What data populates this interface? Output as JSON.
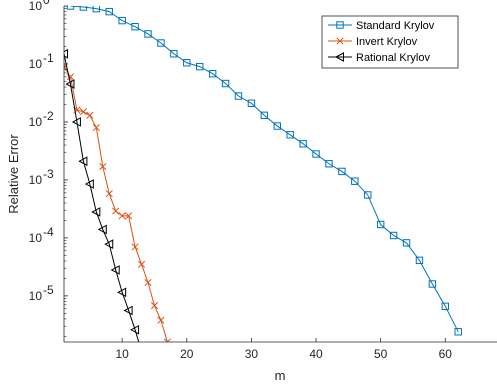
{
  "chart_data": {
    "type": "line",
    "xlabel": "m",
    "ylabel": "Relative Error",
    "xlim": [
      1,
      68
    ],
    "ylim": [
      1.6e-06,
      1.0
    ],
    "yscale": "log",
    "x_ticks": [
      10,
      20,
      30,
      40,
      50,
      60
    ],
    "x_tick_labels": [
      "10",
      "20",
      "30",
      "40",
      "50",
      "60"
    ],
    "y_ticks": [
      {
        "value": 1.0,
        "base": "10",
        "exp": "0"
      },
      {
        "value": 0.1,
        "base": "10",
        "exp": "-1"
      },
      {
        "value": 0.01,
        "base": "10",
        "exp": "-2"
      },
      {
        "value": 0.001,
        "base": "10",
        "exp": "-3"
      },
      {
        "value": 0.0001,
        "base": "10",
        "exp": "-4"
      },
      {
        "value": 1e-05,
        "base": "10",
        "exp": "-5"
      }
    ],
    "grid": false,
    "legend_position": "top-right",
    "series": [
      {
        "name": "Standard Krylov",
        "color": "#0072bd",
        "marker": "square",
        "x": [
          2,
          4,
          6,
          8,
          10,
          12,
          14,
          16,
          18,
          20,
          22,
          24,
          26,
          28,
          30,
          32,
          34,
          36,
          38,
          40,
          42,
          44,
          46,
          48,
          50,
          52,
          54,
          56,
          58,
          60,
          62
        ],
        "y": [
          1.0,
          0.96,
          0.9,
          0.8,
          0.56,
          0.44,
          0.33,
          0.23,
          0.15,
          0.105,
          0.09,
          0.068,
          0.046,
          0.028,
          0.021,
          0.013,
          0.0085,
          0.006,
          0.0042,
          0.0028,
          0.0019,
          0.0014,
          0.00095,
          0.00055,
          0.00017,
          0.00011,
          8.2e-05,
          4.1e-05,
          1.6e-05,
          6.6e-06,
          2.4e-06
        ]
      },
      {
        "name": "Invert Krylov",
        "color": "#d95319",
        "marker": "x",
        "x": [
          1,
          2,
          3,
          4,
          5,
          6,
          7,
          8,
          9,
          10,
          11,
          12,
          13,
          14,
          15,
          16,
          17
        ],
        "y": [
          0.09,
          0.06,
          0.016,
          0.015,
          0.013,
          0.008,
          0.0017,
          0.00058,
          0.00029,
          0.00024,
          0.00024,
          7e-05,
          3.5e-05,
          1.7e-05,
          6.8e-06,
          3.8e-06,
          1.6e-06
        ]
      },
      {
        "name": "Rational Krylov",
        "color": "#000000",
        "marker": "triangle-left",
        "x": [
          1,
          2,
          3,
          4,
          5,
          6,
          7,
          8,
          9,
          10,
          11,
          12,
          13
        ],
        "y": [
          0.15,
          0.045,
          0.01,
          0.0021,
          0.00085,
          0.00028,
          0.00014,
          7.8e-05,
          2.8e-05,
          1.15e-05,
          5.6e-06,
          2.6e-06,
          1.1e-06
        ]
      }
    ]
  }
}
